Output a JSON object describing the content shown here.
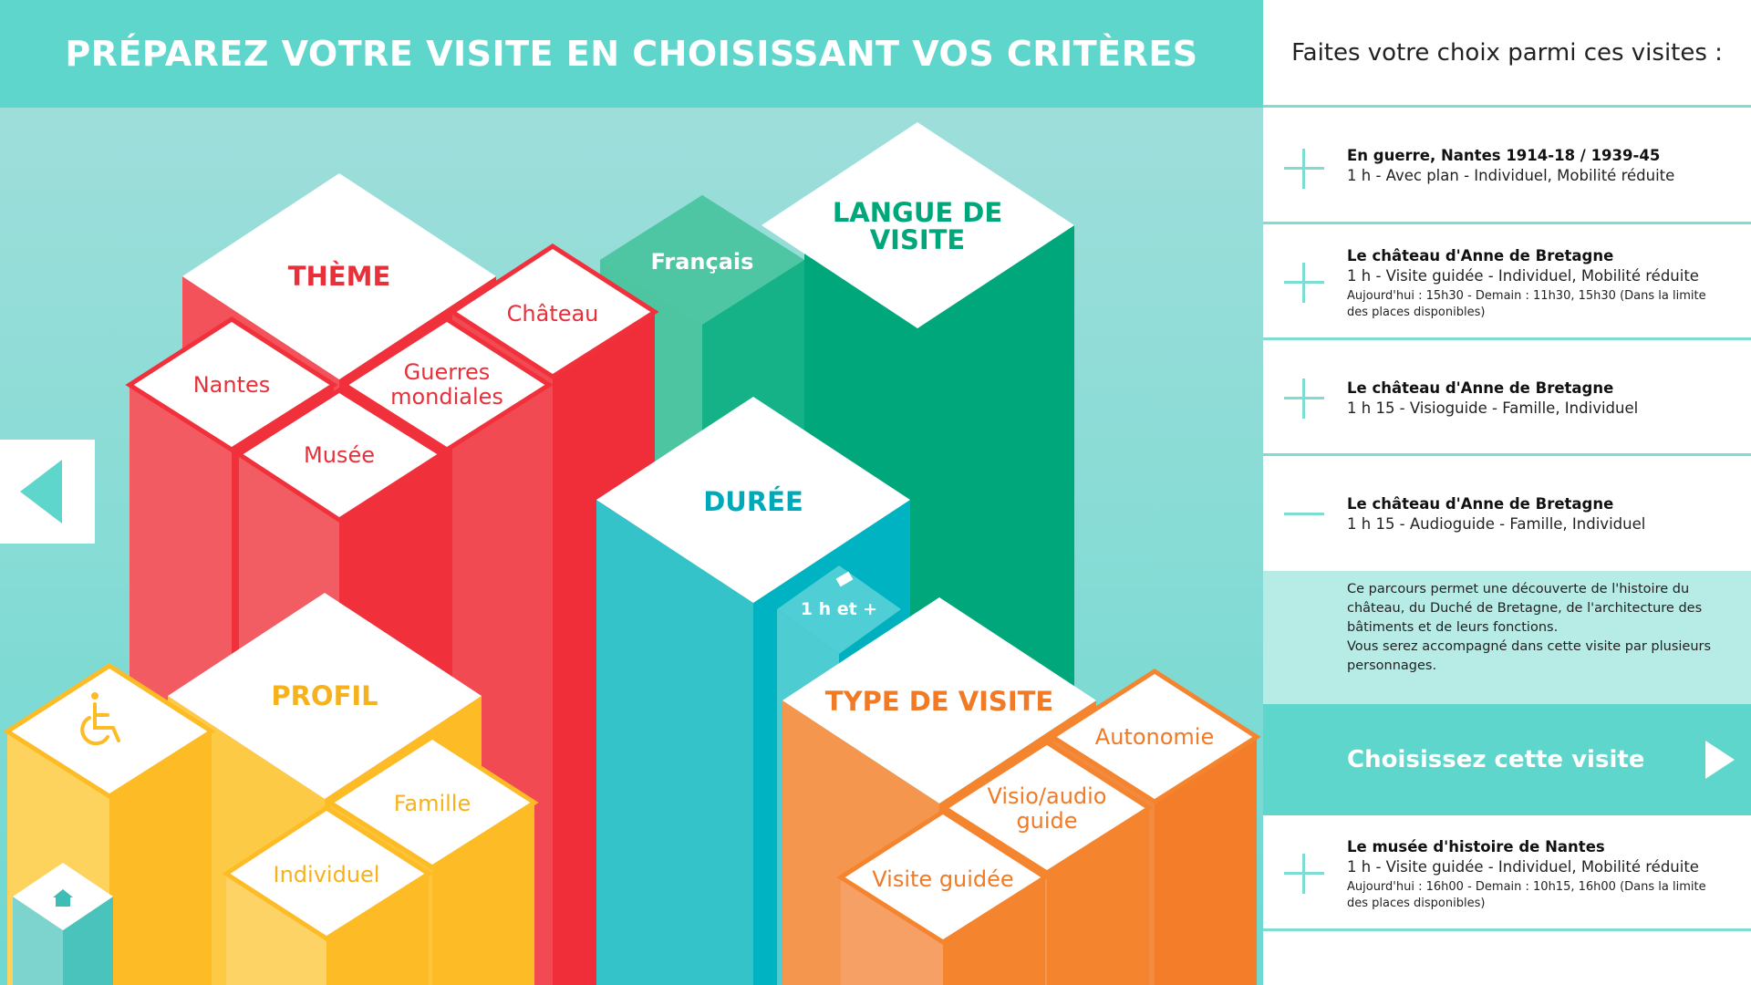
{
  "header": {
    "title": "PRÉPAREZ VOTRE VISITE EN CHOISISSANT VOS CRITÈRES"
  },
  "colors": {
    "teal": "#5fd6cc",
    "red": "#f0313c",
    "green": "#00a77a",
    "blue": "#00b3c2",
    "yellow": "#fdbc26",
    "orange": "#f5842f"
  },
  "criteria": {
    "theme": {
      "label": "THÈME",
      "options": {
        "nantes": "Nantes",
        "chateau": "Château",
        "guerres_1": "Guerres",
        "guerres_2": "mondiales",
        "musee": "Musée"
      }
    },
    "langue": {
      "label_1": "LANGUE DE",
      "label_2": "VISITE",
      "options": {
        "francais": "Français"
      }
    },
    "duree": {
      "label": "DURÉE",
      "options": {
        "1h_plus": "1 h et +"
      }
    },
    "profil": {
      "label": "PROFIL",
      "options": {
        "famille": "Famille",
        "individuel": "Individuel",
        "mobilite": "wheelchair-icon"
      }
    },
    "type": {
      "label": "TYPE DE VISITE",
      "options": {
        "autonomie": "Autonomie",
        "visio_1": "Visio/audio",
        "visio_2": "guide",
        "guidee": "Visite guidée"
      }
    }
  },
  "nav": {
    "prev_icon": "triangle-left-icon",
    "home_icon": "home-icon"
  },
  "panel": {
    "title": "Faites votre choix parmi ces visites :",
    "visits": [
      {
        "title": "En guerre, Nantes 1914-18 / 1939-45",
        "subtitle": "1 h - Avec plan - Individuel, Mobilité réduite",
        "icon": "plus-icon"
      },
      {
        "title": "Le château d'Anne de Bretagne",
        "subtitle": "1 h - Visite guidée - Individuel, Mobilité réduite",
        "times": "Aujourd'hui : 15h30 - Demain : 11h30, 15h30 (Dans la limite des places disponibles)",
        "icon": "plus-icon"
      },
      {
        "title": "Le château d'Anne de Bretagne",
        "subtitle": "1 h 15 - Visioguide - Famille, Individuel",
        "icon": "plus-icon"
      },
      {
        "title": "Le château d'Anne de Bretagne",
        "subtitle": "1 h 15 - Audioguide - Famille, Individuel",
        "icon": "minus-icon",
        "expanded": true
      },
      {
        "title": "Le musée d'histoire de Nantes",
        "subtitle": "1 h - Visite guidée - Individuel, Mobilité réduite",
        "times": "Aujourd'hui : 16h00 - Demain : 10h15, 16h00 (Dans la limite des places disponibles)",
        "icon": "plus-icon"
      }
    ],
    "description_1": "Ce parcours permet une découverte de l'histoire du château, du Duché de Bretagne, de l'architecture des bâtiments et de leurs fonctions.",
    "description_2": "Vous serez accompagné dans cette visite par plusieurs personnages.",
    "choose_label": "Choisissez cette visite",
    "choose_icon": "triangle-right-icon"
  }
}
